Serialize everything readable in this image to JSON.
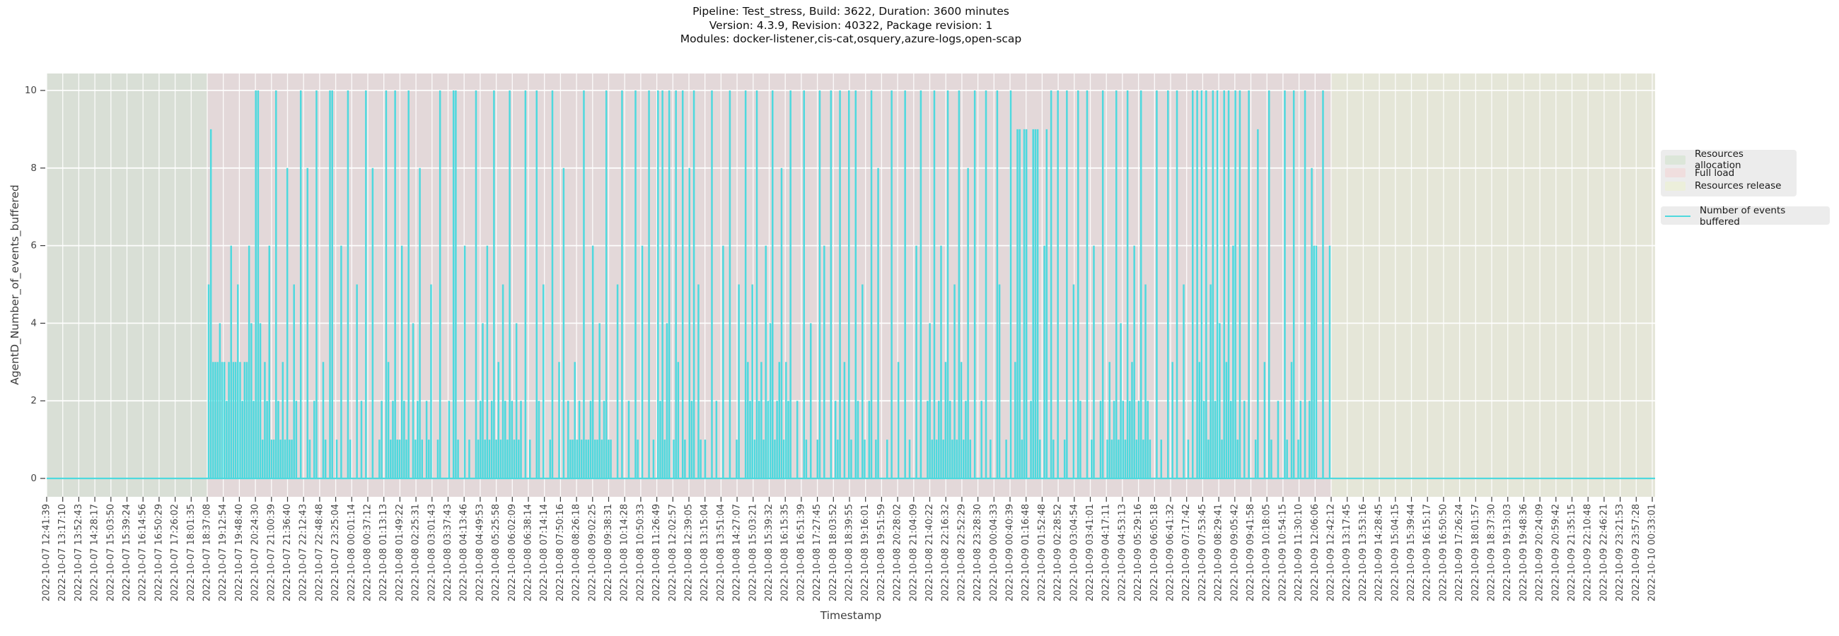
{
  "figure": {
    "title_line1": "Pipeline: Test_stress, Build: 3622, Duration: 3600 minutes",
    "title_line2": "Version: 4.3.9, Revision: 40322, Package revision: 1",
    "title_line3": "Modules: docker-listener,cis-cat,osquery,azure-logs,open-scap"
  },
  "colors": {
    "background": "#ffffff",
    "grid": "#ffffff",
    "series": "#4ed9de",
    "tick_text": "#454545",
    "tick_mark": "#3a3a3a",
    "legend_background": "#ececec",
    "band_allocation": "#d9dfd6",
    "band_full_load": "#e3d8d9",
    "band_release": "#e5e6d8"
  },
  "legend": {
    "region_items": [
      {
        "label": "Resources allocation",
        "swatch_color": "#dce6d9"
      },
      {
        "label": "Full load",
        "swatch_color": "#f0dede"
      },
      {
        "label": "Resources release",
        "swatch_color": "#ecefdb"
      }
    ],
    "series_items": [
      {
        "label": "Number of events buffered",
        "line_color": "#4ed9de"
      }
    ]
  },
  "chart_data": {
    "type": "line",
    "title": "Pipeline: Test_stress, Build: 3622, Duration: 3600 minutes",
    "subtitle_lines": [
      "Version: 4.3.9, Revision: 40322, Package revision: 1",
      "Modules: docker-listener,cis-cat,osquery,azure-logs,open-scap"
    ],
    "xlabel": "Timestamp",
    "ylabel": "AgentD_Number_of_events_buffered",
    "yticks": [
      0,
      2,
      4,
      6,
      8,
      10
    ],
    "ylim": [
      -0.47,
      10.53
    ],
    "grid": true,
    "legend_position": "right",
    "x_tick_labels": [
      "2022-10-07 12:41:39",
      "2022-10-07 13:17:10",
      "2022-10-07 13:52:43",
      "2022-10-07 14:28:17",
      "2022-10-07 15:03:50",
      "2022-10-07 15:39:24",
      "2022-10-07 16:14:56",
      "2022-10-07 16:50:29",
      "2022-10-07 17:26:02",
      "2022-10-07 18:01:35",
      "2022-10-07 18:37:08",
      "2022-10-07 19:12:54",
      "2022-10-07 19:48:40",
      "2022-10-07 20:24:30",
      "2022-10-07 21:00:39",
      "2022-10-07 21:36:40",
      "2022-10-07 22:12:43",
      "2022-10-07 22:48:48",
      "2022-10-07 23:25:04",
      "2022-10-08 00:01:14",
      "2022-10-08 00:37:12",
      "2022-10-08 01:13:13",
      "2022-10-08 01:49:22",
      "2022-10-08 02:25:31",
      "2022-10-08 03:01:43",
      "2022-10-08 03:37:43",
      "2022-10-08 04:13:46",
      "2022-10-08 04:49:53",
      "2022-10-08 05:25:58",
      "2022-10-08 06:02:09",
      "2022-10-08 06:38:14",
      "2022-10-08 07:14:14",
      "2022-10-08 07:50:16",
      "2022-10-08 08:26:18",
      "2022-10-08 09:02:25",
      "2022-10-08 09:38:31",
      "2022-10-08 10:14:28",
      "2022-10-08 10:50:33",
      "2022-10-08 11:26:49",
      "2022-10-08 12:02:57",
      "2022-10-08 12:39:05",
      "2022-10-08 13:15:04",
      "2022-10-08 13:51:04",
      "2022-10-08 14:27:07",
      "2022-10-08 15:03:21",
      "2022-10-08 15:39:32",
      "2022-10-08 16:15:35",
      "2022-10-08 16:51:39",
      "2022-10-08 17:27:45",
      "2022-10-08 18:03:52",
      "2022-10-08 18:39:55",
      "2022-10-08 19:16:01",
      "2022-10-08 19:51:59",
      "2022-10-08 20:28:02",
      "2022-10-08 21:04:09",
      "2022-10-08 21:40:22",
      "2022-10-08 22:16:32",
      "2022-10-08 22:52:29",
      "2022-10-08 23:28:30",
      "2022-10-09 00:04:33",
      "2022-10-09 00:40:39",
      "2022-10-09 01:16:48",
      "2022-10-09 01:52:48",
      "2022-10-09 02:28:52",
      "2022-10-09 03:04:54",
      "2022-10-09 03:41:01",
      "2022-10-09 04:17:11",
      "2022-10-09 04:53:13",
      "2022-10-09 05:29:16",
      "2022-10-09 06:05:18",
      "2022-10-09 06:41:32",
      "2022-10-09 07:17:42",
      "2022-10-09 07:53:45",
      "2022-10-09 08:29:41",
      "2022-10-09 09:05:42",
      "2022-10-09 09:41:58",
      "2022-10-09 10:18:05",
      "2022-10-09 10:54:15",
      "2022-10-09 11:30:10",
      "2022-10-09 12:06:06",
      "2022-10-09 12:42:12",
      "2022-10-09 13:17:45",
      "2022-10-09 13:53:16",
      "2022-10-09 14:28:45",
      "2022-10-09 15:04:15",
      "2022-10-09 15:39:44",
      "2022-10-09 16:15:17",
      "2022-10-09 16:50:50",
      "2022-10-09 17:26:24",
      "2022-10-09 18:01:57",
      "2022-10-09 18:37:30",
      "2022-10-09 19:13:03",
      "2022-10-09 19:48:36",
      "2022-10-09 20:24:09",
      "2022-10-09 20:59:42",
      "2022-10-09 21:35:15",
      "2022-10-09 22:10:48",
      "2022-10-09 22:46:21",
      "2022-10-09 23:21:53",
      "2022-10-09 23:57:28",
      "2022-10-10 00:33:01"
    ],
    "regions": [
      {
        "label": "Resources allocation",
        "start_tick": 0,
        "end_tick": 10,
        "color": "#d9dfd6",
        "start_at_plot_edge": true
      },
      {
        "label": "Full load",
        "start_tick": 10,
        "end_tick": 80,
        "color": "#e3d8d9"
      },
      {
        "label": "Resources release",
        "start_tick": 80,
        "end_tick": 100,
        "color": "#e5e6d8",
        "end_at_plot_edge": true
      }
    ],
    "series": [
      {
        "name": "Number of events buffered",
        "color": "#4ed9de",
        "baseline_value": 0,
        "active_start_tick": 10,
        "active_end_tick": 80,
        "values": [
          5,
          9,
          3,
          3,
          3,
          4,
          3,
          3,
          2,
          3,
          6,
          3,
          3,
          5,
          3,
          2,
          3,
          3,
          6,
          4,
          2,
          10,
          10,
          4,
          1,
          3,
          2,
          6,
          1,
          1,
          10,
          2,
          1,
          3,
          1,
          8,
          1,
          1,
          5,
          2,
          0,
          10,
          0,
          0,
          8,
          1,
          0,
          2,
          10,
          0,
          0,
          3,
          1,
          0,
          10,
          10,
          0,
          1,
          0,
          6,
          0,
          0,
          10,
          1,
          0,
          0,
          5,
          0,
          2,
          0,
          10,
          0,
          0,
          8,
          0,
          0,
          1,
          2,
          0,
          10,
          3,
          1,
          2,
          10,
          1,
          1,
          6,
          2,
          1,
          10,
          0,
          4,
          1,
          2,
          8,
          1,
          0,
          2,
          1,
          5,
          0,
          0,
          1,
          10,
          0,
          0,
          0,
          2,
          0,
          10,
          10,
          1,
          0,
          0,
          6,
          0,
          1,
          0,
          0,
          10,
          1,
          2,
          4,
          1,
          6,
          1,
          2,
          10,
          1,
          3,
          1,
          5,
          2,
          1,
          10,
          2,
          1,
          4,
          1,
          2,
          0,
          10,
          0,
          1,
          0,
          0,
          10,
          2,
          0,
          5,
          0,
          0,
          1,
          10,
          0,
          0,
          3,
          0,
          8,
          0,
          2,
          1,
          1,
          3,
          1,
          2,
          1,
          10,
          1,
          1,
          2,
          6,
          1,
          1,
          4,
          1,
          2,
          10,
          1,
          1,
          0,
          0,
          5,
          0,
          10,
          0,
          0,
          2,
          0,
          0,
          10,
          1,
          0,
          6,
          0,
          0,
          10,
          0,
          1,
          0,
          10,
          2,
          10,
          1,
          4,
          10,
          0,
          1,
          10,
          3,
          0,
          10,
          1,
          0,
          8,
          2,
          10,
          0,
          5,
          1,
          0,
          1,
          0,
          0,
          10,
          0,
          2,
          0,
          0,
          6,
          0,
          0,
          10,
          0,
          0,
          1,
          5,
          0,
          0,
          10,
          3,
          2,
          5,
          1,
          10,
          2,
          3,
          1,
          6,
          2,
          4,
          10,
          1,
          2,
          3,
          8,
          1,
          3,
          2,
          10,
          0,
          0,
          2,
          0,
          0,
          10,
          1,
          0,
          4,
          0,
          0,
          1,
          10,
          0,
          6,
          0,
          0,
          10,
          0,
          2,
          1,
          10,
          0,
          3,
          0,
          10,
          1,
          0,
          10,
          2,
          0,
          5,
          1,
          0,
          2,
          10,
          0,
          1,
          8,
          0,
          0,
          0,
          1,
          0,
          10,
          0,
          0,
          3,
          0,
          0,
          10,
          0,
          1,
          0,
          0,
          6,
          0,
          10,
          0,
          0,
          2,
          4,
          1,
          10,
          1,
          2,
          6,
          1,
          3,
          10,
          2,
          1,
          5,
          1,
          10,
          3,
          1,
          2,
          8,
          1,
          0,
          10,
          0,
          0,
          2,
          0,
          10,
          0,
          1,
          0,
          0,
          10,
          5,
          0,
          0,
          1,
          0,
          10,
          0,
          3,
          9,
          9,
          1,
          9,
          9,
          0,
          2,
          9,
          9,
          9,
          1,
          0,
          6,
          9,
          0,
          10,
          1,
          0,
          10,
          0,
          0,
          1,
          10,
          0,
          0,
          5,
          0,
          10,
          2,
          0,
          0,
          10,
          0,
          1,
          6,
          0,
          0,
          2,
          10,
          0,
          1,
          3,
          1,
          2,
          10,
          1,
          4,
          2,
          1,
          10,
          2,
          3,
          6,
          1,
          2,
          10,
          1,
          5,
          2,
          1,
          0,
          0,
          10,
          0,
          1,
          0,
          0,
          10,
          0,
          3,
          0,
          10,
          0,
          0,
          5,
          0,
          1,
          0,
          10,
          0,
          10,
          3,
          10,
          2,
          10,
          1,
          5,
          10,
          2,
          10,
          4,
          1,
          10,
          3,
          10,
          2,
          6,
          10,
          1,
          10,
          0,
          2,
          0,
          10,
          0,
          0,
          1,
          9,
          0,
          0,
          3,
          0,
          10,
          1,
          0,
          0,
          2,
          0,
          0,
          10,
          1,
          0,
          3,
          10,
          0,
          1,
          2,
          0,
          10,
          0,
          2,
          8,
          6,
          6,
          0,
          0,
          10,
          0,
          0,
          6
        ]
      }
    ]
  }
}
